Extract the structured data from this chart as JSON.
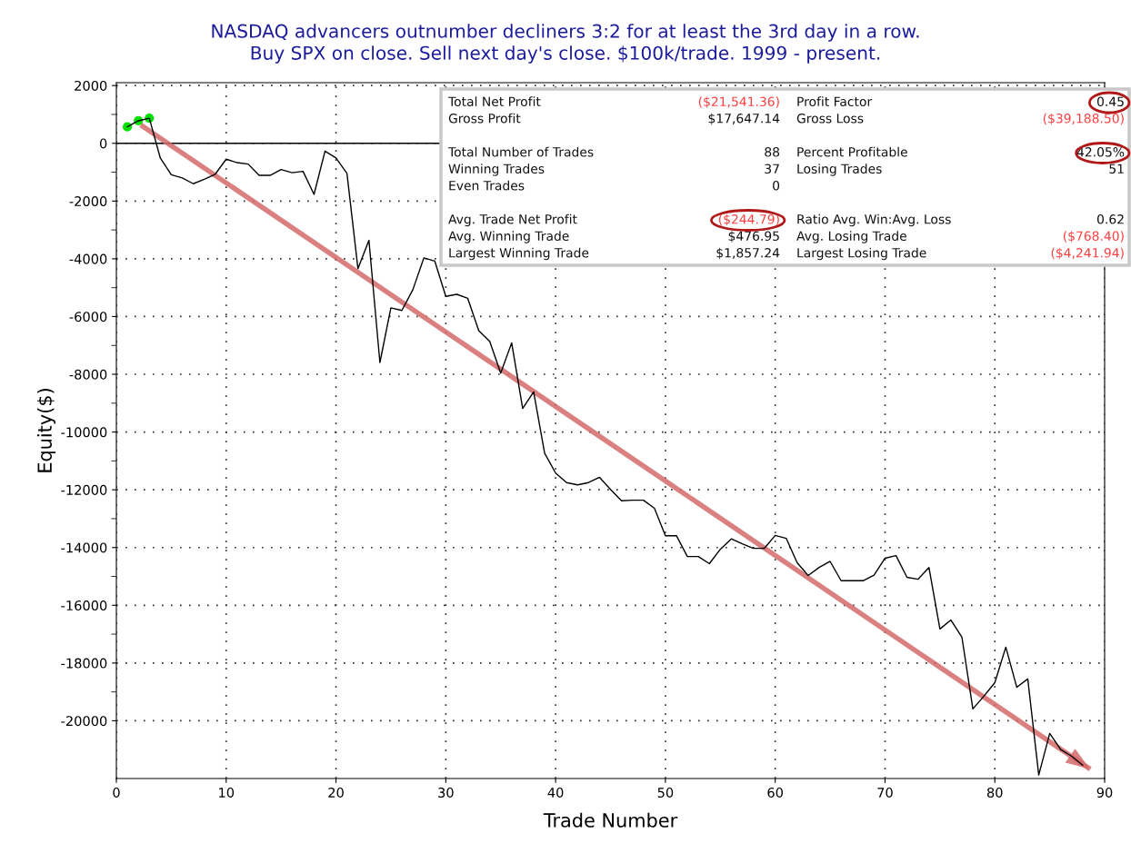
{
  "chart_data": {
    "type": "line",
    "title": "NASDAQ advancers outnumber decliners 3:2 for at least the 3rd day in a row.\nBuy SPX on close. Sell next day's close. $100k/trade. 1999 - present.",
    "xlabel": "Trade Number",
    "ylabel": "Equity($)",
    "x": [
      1,
      2,
      3,
      4,
      5,
      6,
      7,
      8,
      9,
      10,
      11,
      12,
      13,
      14,
      15,
      16,
      17,
      18,
      19,
      20,
      21,
      22,
      23,
      24,
      25,
      26,
      27,
      28,
      29,
      30,
      31,
      32,
      33,
      34,
      35,
      36,
      37,
      38,
      39,
      40,
      41,
      42,
      43,
      44,
      45,
      46,
      47,
      48,
      49,
      50,
      51,
      52,
      53,
      54,
      55,
      56,
      57,
      58,
      59,
      60,
      61,
      62,
      63,
      64,
      65,
      66,
      67,
      68,
      69,
      70,
      71,
      72,
      73,
      74,
      75,
      76,
      77,
      78,
      79,
      80,
      81,
      82,
      83,
      84,
      85,
      86,
      87,
      88
    ],
    "series": [
      {
        "color": "#000000",
        "marker": "none",
        "values": [
          570,
          780,
          870,
          -510,
          -1090,
          -1200,
          -1400,
          -1250,
          -1070,
          -550,
          -670,
          -720,
          -1110,
          -1110,
          -910,
          -1020,
          -970,
          -1770,
          -270,
          -510,
          -1040,
          -4340,
          -3360,
          -7590,
          -5700,
          -5790,
          -5070,
          -3970,
          -4080,
          -5300,
          -5230,
          -5370,
          -6490,
          -6860,
          -7960,
          -6910,
          -9180,
          -8610,
          -10730,
          -11420,
          -11750,
          -11830,
          -11750,
          -11570,
          -11990,
          -12380,
          -12360,
          -12360,
          -12640,
          -13590,
          -13590,
          -14310,
          -14310,
          -14560,
          -14060,
          -13700,
          -13870,
          -14030,
          -14030,
          -13580,
          -13680,
          -14530,
          -14970,
          -14690,
          -14480,
          -15150,
          -15150,
          -15150,
          -14960,
          -14370,
          -14280,
          -15030,
          -15100,
          -14690,
          -16820,
          -16510,
          -17100,
          -19590,
          -19150,
          -18680,
          -17450,
          -18840,
          -18550,
          -21880,
          -20440,
          -21000,
          -21230,
          -21540
        ]
      },
      {
        "type": "scatter",
        "color": "#00e000",
        "marker": "circle",
        "x": [
          1,
          2,
          3
        ],
        "values": [
          570,
          780,
          870
        ]
      },
      {
        "type": "line",
        "color": "#d46a6a",
        "marker": "none",
        "x": [
          2.4,
          88.5
        ],
        "values": [
          590,
          -21630
        ]
      }
    ],
    "xlim": [
      0,
      90
    ],
    "ylim": [
      -22000,
      2100
    ],
    "xticks": [
      0,
      10,
      20,
      30,
      40,
      50,
      60,
      70,
      80,
      90
    ],
    "yticks": [
      -20000,
      -18000,
      -16000,
      -14000,
      -12000,
      -10000,
      -8000,
      -6000,
      -4000,
      -2000,
      0,
      2000
    ],
    "grid": true,
    "line_style": "solid",
    "ref_lines": [
      {
        "axis": "y",
        "value": 0,
        "color": "#000000"
      }
    ],
    "annotations": [
      "Total Net Profit",
      "($21,541.36)",
      "Profit Factor",
      "0.45",
      "Gross Profit",
      "$17,647.14",
      "Gross Loss",
      "($39,188.50)",
      "Total Number of Trades",
      "88",
      "Percent Profitable",
      "42.05%",
      "Winning Trades",
      "37",
      "Losing Trades",
      "51",
      "Even Trades",
      "0",
      "Avg. Trade Net Profit",
      "($244.79)",
      "Ratio Avg. Win:Avg. Loss",
      "0.62",
      "Avg. Winning Trade",
      "$476.95",
      "Avg. Losing Trade",
      "($768.40)",
      "Largest Winning Trade",
      "$1,857.24",
      "Largest Losing Trade",
      "($4,241.94)"
    ]
  }
}
